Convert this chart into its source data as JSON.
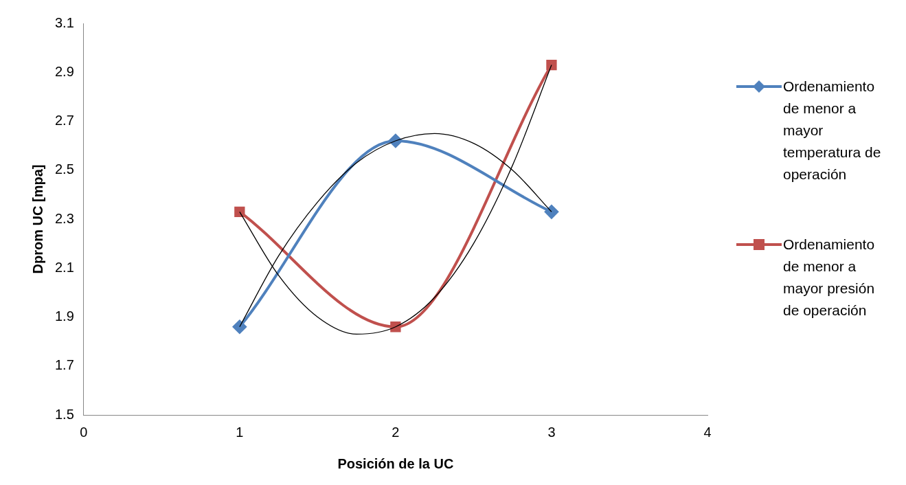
{
  "chart_data": {
    "type": "scatter",
    "xlabel": "Posición de la UC",
    "ylabel": "Dprom UC [mpa]",
    "x": [
      1,
      2,
      3
    ],
    "series": [
      {
        "name": "Ordenamiento de menor a mayor temperatura de operación",
        "type": "line",
        "color": "#4f81bd",
        "marker": "diamond",
        "values": [
          1.86,
          2.62,
          2.33
        ]
      },
      {
        "name": "Ordenamiento de menor a mayor presión de operación",
        "type": "line",
        "color": "#c0504d",
        "marker": "square",
        "values": [
          2.33,
          1.86,
          2.93
        ]
      },
      {
        "type": "line",
        "color": "#000000",
        "marker": "none",
        "x": [
          1,
          1.25,
          1.5,
          1.75,
          2,
          2.25,
          2.5,
          2.75,
          3
        ],
        "values": [
          1.86,
          2.15,
          2.37,
          2.53,
          2.62,
          2.65,
          2.61,
          2.5,
          2.33
        ]
      },
      {
        "type": "line",
        "color": "#000000",
        "marker": "none",
        "x": [
          1,
          1.25,
          1.5,
          1.75,
          2,
          2.25,
          2.5,
          2.75,
          3
        ],
        "values": [
          2.33,
          2.07,
          1.9,
          1.83,
          1.86,
          1.98,
          2.2,
          2.52,
          2.93
        ]
      }
    ],
    "xlim": [
      0,
      4
    ],
    "xticks": [
      0,
      1,
      2,
      3,
      4
    ],
    "ylim": [
      1.5,
      3.1
    ],
    "yticks": [
      1.5,
      1.7,
      1.9,
      2.1,
      2.3,
      2.5,
      2.7,
      2.9,
      3.1
    ],
    "grid": false,
    "legend": "right"
  }
}
